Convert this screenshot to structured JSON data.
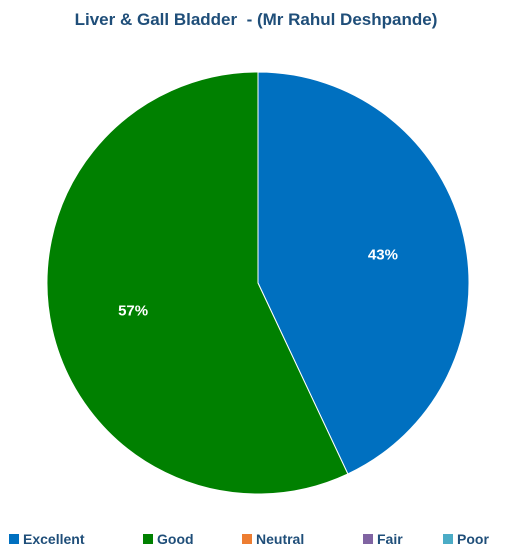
{
  "chart_data": {
    "type": "pie",
    "title": "Liver & Gall Bladder  - (Mr Rahul Deshpande)",
    "categories": [
      "Excellent",
      "Good",
      "Neutral",
      "Fair",
      "Poor"
    ],
    "values": [
      43,
      57,
      0,
      0,
      0
    ],
    "data_labels": [
      "43%",
      "57%",
      "",
      "",
      ""
    ],
    "colors": [
      "#0070c0",
      "#008000",
      "#ed7d31",
      "#8064a2",
      "#4bacc6"
    ],
    "legend_position": "bottom",
    "start_angle_deg": 0,
    "direction": "clockwise"
  }
}
